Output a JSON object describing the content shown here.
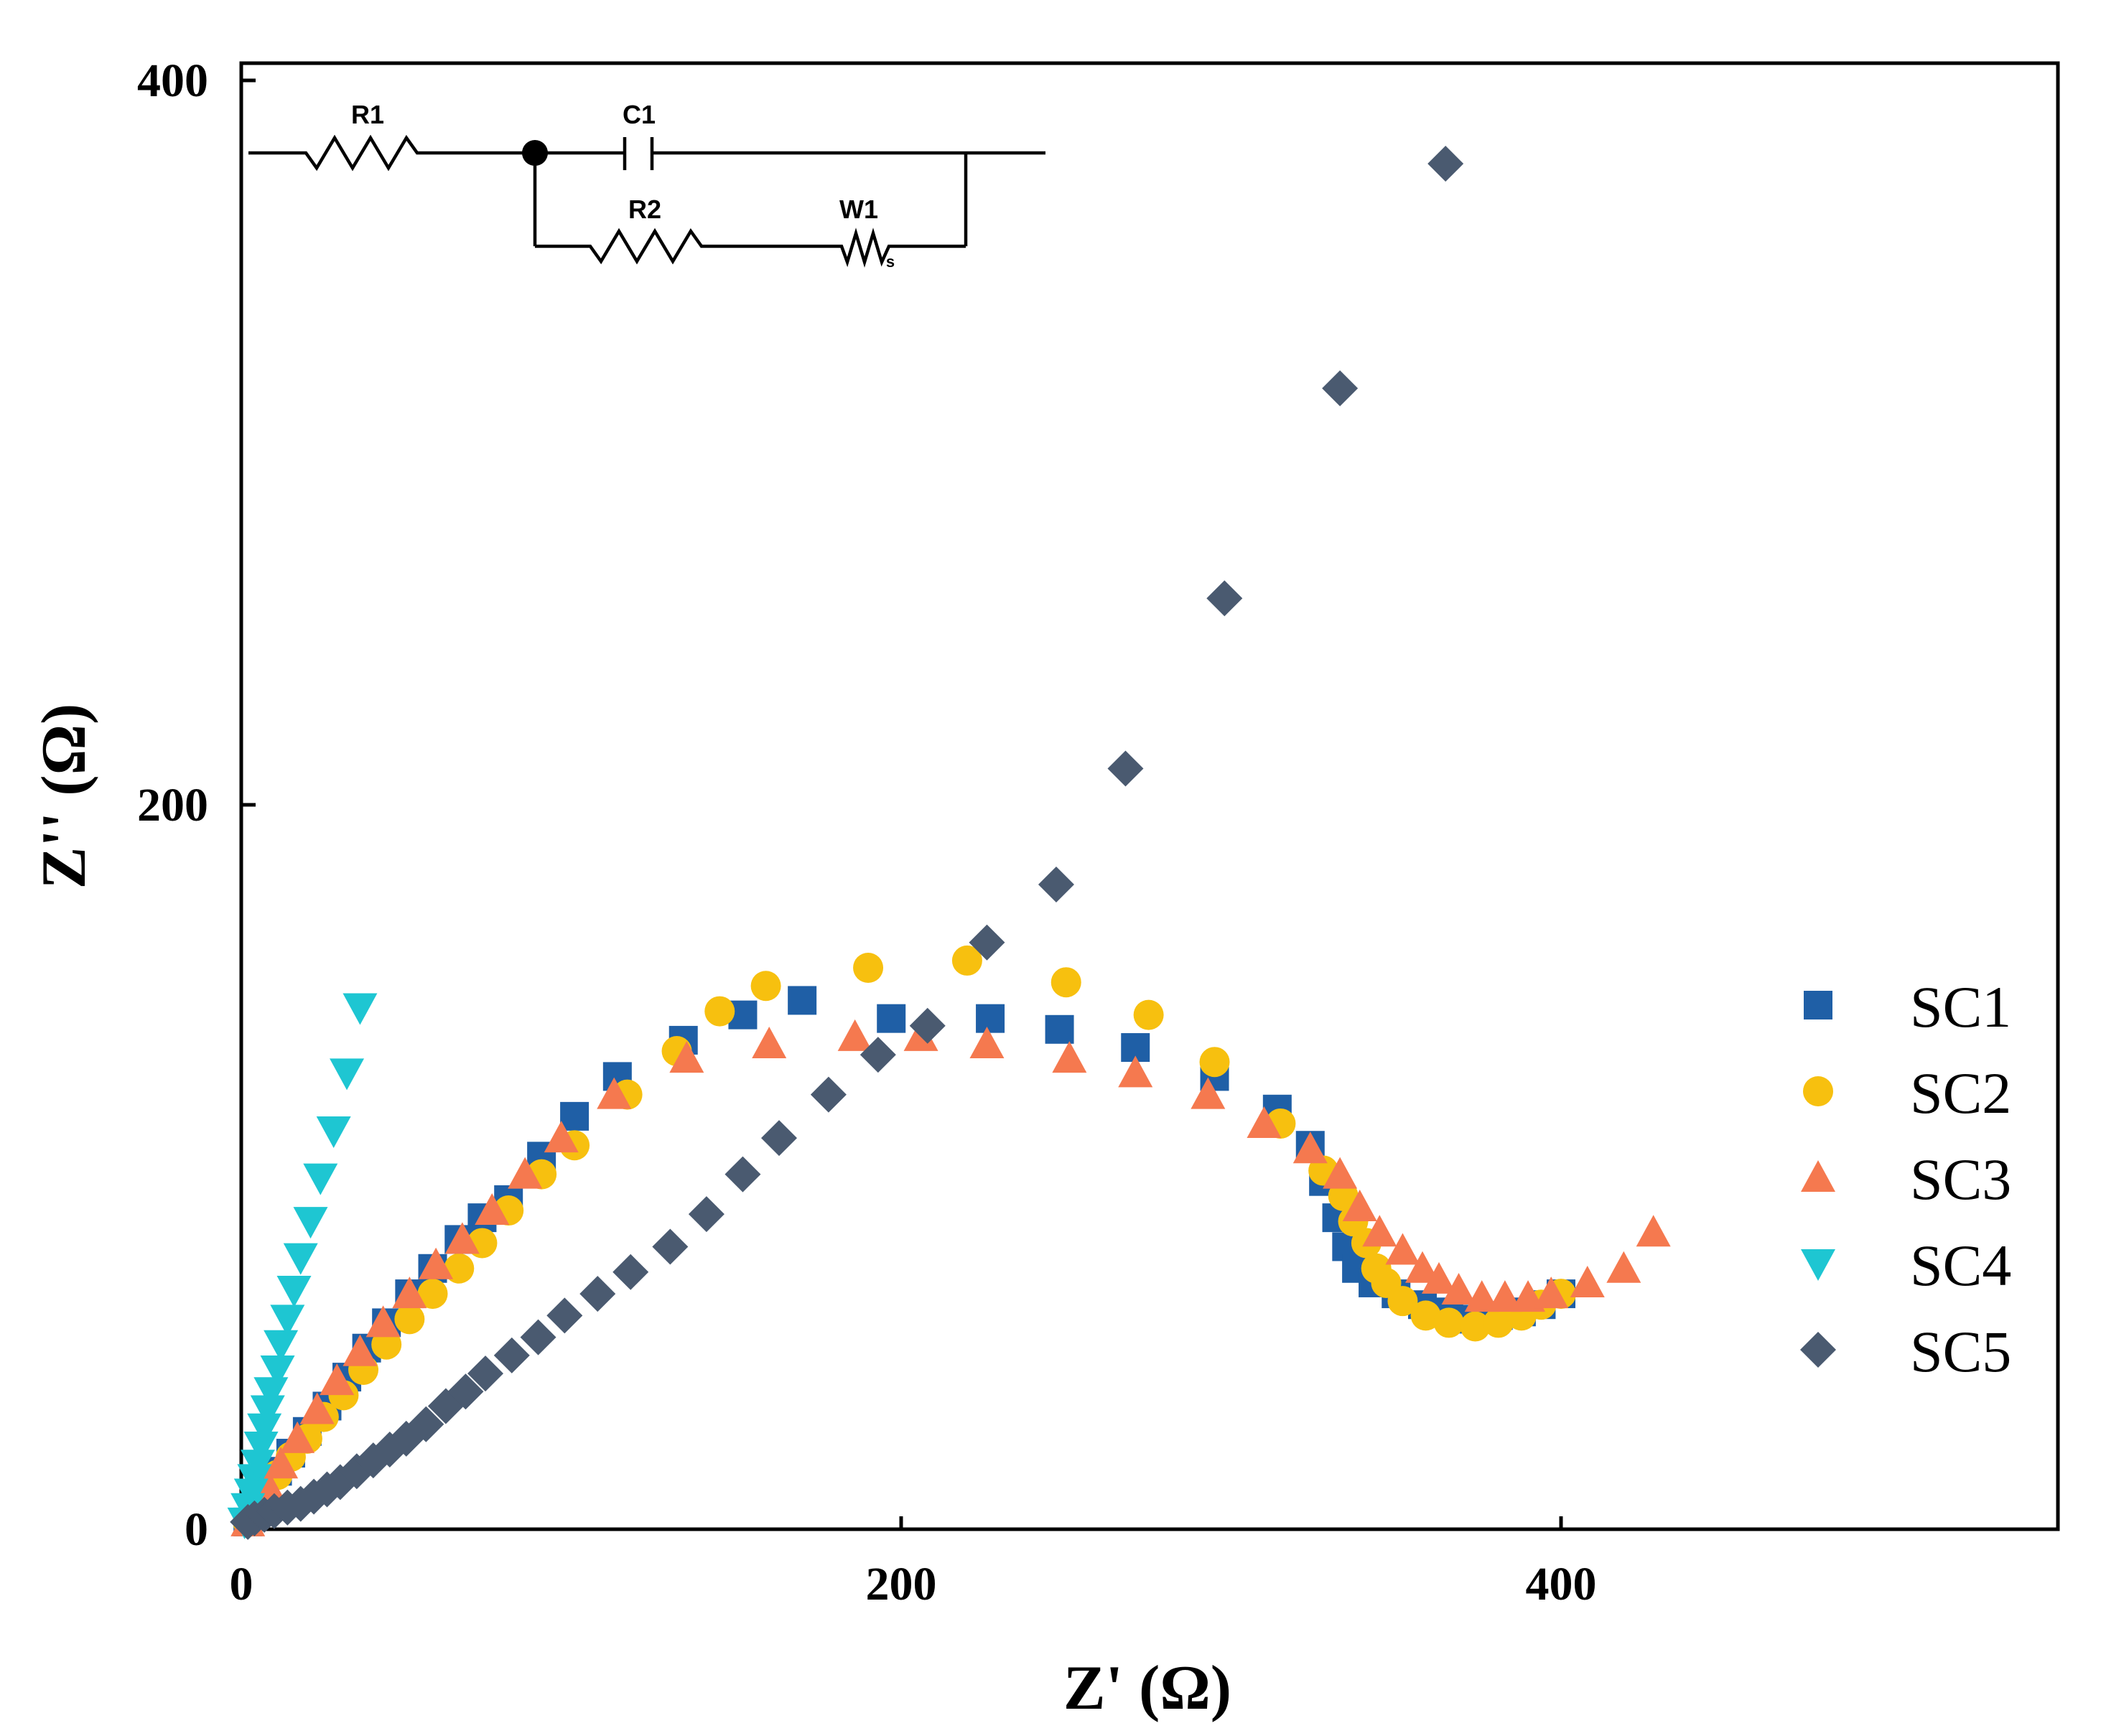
{
  "chart_data": {
    "type": "scatter",
    "title": "",
    "xlabel": "Z' (Ω)",
    "ylabel": "Z'' (Ω)",
    "xlim": [
      0,
      550
    ],
    "ylim": [
      0,
      400
    ],
    "xticks": [
      0,
      200,
      400
    ],
    "yticks": [
      0,
      200,
      400
    ],
    "grid": false,
    "legend_position": "right",
    "series": [
      {
        "name": "SC1",
        "marker": "square",
        "color": "#1f5fa6",
        "points": [
          [
            2,
            2
          ],
          [
            4,
            6
          ],
          [
            7,
            11
          ],
          [
            11,
            16
          ],
          [
            15,
            21
          ],
          [
            20,
            27
          ],
          [
            26,
            34
          ],
          [
            32,
            42
          ],
          [
            38,
            50
          ],
          [
            44,
            57
          ],
          [
            51,
            65
          ],
          [
            58,
            72
          ],
          [
            66,
            80
          ],
          [
            73,
            86
          ],
          [
            81,
            91
          ],
          [
            91,
            103
          ],
          [
            101,
            114
          ],
          [
            114,
            125
          ],
          [
            134,
            135
          ],
          [
            152,
            142
          ],
          [
            170,
            146
          ],
          [
            197,
            141
          ],
          [
            227,
            141
          ],
          [
            248,
            138
          ],
          [
            271,
            133
          ],
          [
            295,
            125
          ],
          [
            314,
            116
          ],
          [
            324,
            106
          ],
          [
            328,
            96
          ],
          [
            332,
            86
          ],
          [
            335,
            78
          ],
          [
            338,
            72
          ],
          [
            343,
            68
          ],
          [
            350,
            65
          ],
          [
            358,
            62
          ],
          [
            366,
            60
          ],
          [
            373,
            58
          ],
          [
            381,
            59
          ],
          [
            388,
            60
          ],
          [
            394,
            62
          ],
          [
            400,
            65
          ]
        ]
      },
      {
        "name": "SC2",
        "marker": "circle",
        "color": "#f7c00f",
        "points": [
          [
            2,
            2
          ],
          [
            4,
            5
          ],
          [
            7,
            10
          ],
          [
            11,
            15
          ],
          [
            15,
            20
          ],
          [
            20,
            25
          ],
          [
            25,
            31
          ],
          [
            31,
            37
          ],
          [
            37,
            44
          ],
          [
            44,
            51
          ],
          [
            51,
            58
          ],
          [
            58,
            65
          ],
          [
            66,
            72
          ],
          [
            73,
            79
          ],
          [
            81,
            88
          ],
          [
            91,
            98
          ],
          [
            101,
            106
          ],
          [
            117,
            120
          ],
          [
            132,
            132
          ],
          [
            145,
            143
          ],
          [
            159,
            150
          ],
          [
            190,
            155
          ],
          [
            220,
            157
          ],
          [
            250,
            151
          ],
          [
            275,
            142
          ],
          [
            295,
            129
          ],
          [
            315,
            112
          ],
          [
            328,
            99
          ],
          [
            334,
            92
          ],
          [
            337,
            85
          ],
          [
            341,
            79
          ],
          [
            344,
            72
          ],
          [
            347,
            68
          ],
          [
            352,
            63
          ],
          [
            359,
            59
          ],
          [
            366,
            57
          ],
          [
            374,
            56
          ],
          [
            381,
            57
          ],
          [
            388,
            59
          ],
          [
            394,
            62
          ],
          [
            400,
            65
          ]
        ]
      },
      {
        "name": "SC3",
        "marker": "triangle-up",
        "color": "#f5794f",
        "points": [
          [
            2,
            2
          ],
          [
            5,
            6
          ],
          [
            8,
            12
          ],
          [
            12,
            18
          ],
          [
            17,
            25
          ],
          [
            23,
            33
          ],
          [
            29,
            41
          ],
          [
            36,
            49
          ],
          [
            43,
            57
          ],
          [
            51,
            65
          ],
          [
            59,
            73
          ],
          [
            67,
            80
          ],
          [
            76,
            88
          ],
          [
            86,
            98
          ],
          [
            97,
            108
          ],
          [
            113,
            120
          ],
          [
            135,
            130
          ],
          [
            160,
            134
          ],
          [
            186,
            136
          ],
          [
            206,
            136
          ],
          [
            226,
            134
          ],
          [
            251,
            130
          ],
          [
            271,
            126
          ],
          [
            293,
            120
          ],
          [
            310,
            112
          ],
          [
            324,
            105
          ],
          [
            333,
            98
          ],
          [
            339,
            89
          ],
          [
            345,
            82
          ],
          [
            352,
            77
          ],
          [
            358,
            72
          ],
          [
            363,
            69
          ],
          [
            369,
            66
          ],
          [
            376,
            64
          ],
          [
            383,
            64
          ],
          [
            390,
            64
          ],
          [
            397,
            65
          ],
          [
            408,
            68
          ],
          [
            419,
            72
          ],
          [
            428,
            82
          ]
        ]
      },
      {
        "name": "SC4",
        "marker": "triangle-down",
        "color": "#1ec6d2",
        "points": [
          [
            1,
            2
          ],
          [
            2,
            6
          ],
          [
            3,
            10
          ],
          [
            4,
            14
          ],
          [
            5,
            18
          ],
          [
            6,
            23
          ],
          [
            7,
            28
          ],
          [
            8,
            33
          ],
          [
            9,
            38
          ],
          [
            11,
            44
          ],
          [
            12,
            51
          ],
          [
            14,
            58
          ],
          [
            16,
            66
          ],
          [
            18,
            75
          ],
          [
            21,
            85
          ],
          [
            24,
            97
          ],
          [
            28,
            110
          ],
          [
            32,
            126
          ],
          [
            36,
            144
          ]
        ]
      },
      {
        "name": "SC5",
        "marker": "diamond",
        "color": "#4a5a70",
        "points": [
          [
            2,
            2
          ],
          [
            4,
            3
          ],
          [
            7,
            4
          ],
          [
            10,
            5
          ],
          [
            14,
            6
          ],
          [
            18,
            7
          ],
          [
            22,
            9
          ],
          [
            26,
            11
          ],
          [
            30,
            13
          ],
          [
            35,
            16
          ],
          [
            40,
            19
          ],
          [
            45,
            22
          ],
          [
            50,
            25
          ],
          [
            56,
            29
          ],
          [
            62,
            34
          ],
          [
            68,
            38
          ],
          [
            74,
            43
          ],
          [
            82,
            48
          ],
          [
            90,
            53
          ],
          [
            98,
            59
          ],
          [
            108,
            65
          ],
          [
            118,
            71
          ],
          [
            130,
            78
          ],
          [
            141,
            87
          ],
          [
            152,
            98
          ],
          [
            163,
            108
          ],
          [
            178,
            120
          ],
          [
            193,
            131
          ],
          [
            208,
            139
          ],
          [
            226,
            162
          ],
          [
            247,
            178
          ],
          [
            268,
            210
          ],
          [
            298,
            257
          ],
          [
            333,
            315
          ],
          [
            365,
            377
          ]
        ]
      }
    ],
    "inset_circuit": {
      "labels": {
        "r1": "R1",
        "c1": "C1",
        "r2": "R2",
        "w1": "W1",
        "w1_sub": "s"
      }
    }
  }
}
